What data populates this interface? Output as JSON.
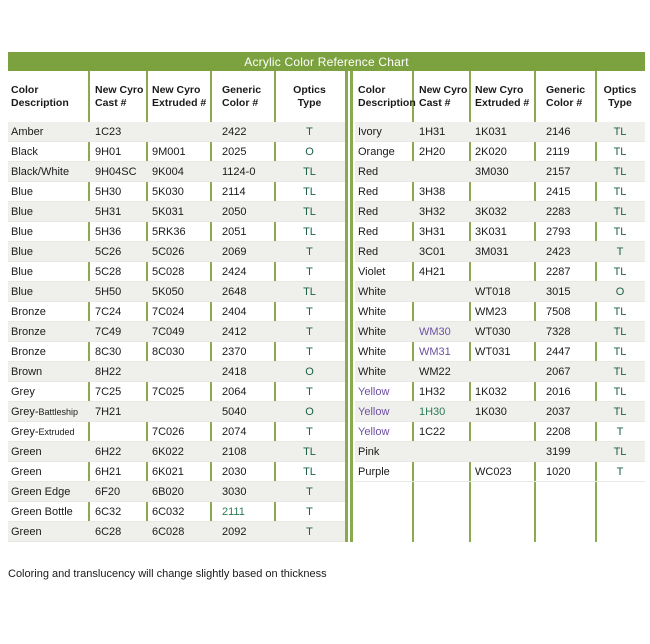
{
  "title": "Acrylic Color Reference Chart",
  "footnote": "Coloring and translucency will change slightly based on thickness",
  "colors": {
    "title_bar": "#7ca23f",
    "divider": "#88ab4e",
    "stripe": "#efefec",
    "accent_green": "#2b7a57",
    "accent_purple": "#6d51a1",
    "optics": "#1b6148"
  },
  "headers": [
    "Color\nDescription",
    "New Cyro\nCast #",
    "New Cyro\nExtruded #",
    "Generic\nColor #",
    "Optics\nType"
  ],
  "left_rows": [
    {
      "desc": "Amber",
      "cast": "1C23",
      "ext": "",
      "gen": "2422",
      "opt": "T"
    },
    {
      "desc": "Black",
      "cast": "9H01",
      "ext": "9M001",
      "gen": "2025",
      "opt": "O"
    },
    {
      "desc": "Black/White",
      "cast": "9H04SC",
      "ext": "9K004",
      "gen": "1124-0",
      "opt": "TL"
    },
    {
      "desc": "Blue",
      "cast": "5H30",
      "ext": "5K030",
      "gen": "2114",
      "opt": "TL"
    },
    {
      "desc": "Blue",
      "cast": "5H31",
      "ext": "5K031",
      "gen": "2050",
      "opt": "TL"
    },
    {
      "desc": "Blue",
      "cast": "5H36",
      "ext": "5RK36",
      "gen": "2051",
      "opt": "TL"
    },
    {
      "desc": "Blue",
      "cast": "5C26",
      "ext": "5C026",
      "gen": "2069",
      "opt": "T"
    },
    {
      "desc": "Blue",
      "cast": "5C28",
      "ext": "5C028",
      "gen": "2424",
      "opt": "T"
    },
    {
      "desc": "Blue",
      "cast": "5H50",
      "ext": "5K050",
      "gen": "2648",
      "opt": "TL"
    },
    {
      "desc": "Bronze",
      "cast": "7C24",
      "ext": "7C024",
      "gen": "2404",
      "opt": "T"
    },
    {
      "desc": "Bronze",
      "cast": "7C49",
      "ext": "7C049",
      "gen": "2412",
      "opt": "T"
    },
    {
      "desc": "Bronze",
      "cast": "8C30",
      "ext": "8C030",
      "gen": "2370",
      "opt": "T"
    },
    {
      "desc": "Brown",
      "cast": "8H22",
      "ext": "",
      "gen": "2418",
      "opt": "O"
    },
    {
      "desc": "Grey",
      "cast": "7C25",
      "ext": "7C025",
      "gen": "2064",
      "opt": "T"
    },
    {
      "desc": "Grey-Battleship",
      "cast": "7H21",
      "ext": "",
      "gen": "5040",
      "opt": "O",
      "suffix_small": true
    },
    {
      "desc": "Grey-Extruded",
      "cast": "",
      "ext": "7C026",
      "gen": "2074",
      "opt": "T",
      "suffix_small": true
    },
    {
      "desc": "Green",
      "cast": "6H22",
      "ext": "6K022",
      "gen": "2108",
      "opt": "TL"
    },
    {
      "desc": "Green",
      "cast": "6H21",
      "ext": "6K021",
      "gen": "2030",
      "opt": "TL"
    },
    {
      "desc": "Green Edge",
      "cast": "6F20",
      "ext": "6B020",
      "gen": "3030",
      "opt": "T"
    },
    {
      "desc": "Green Bottle",
      "cast": "6C32",
      "ext": "6C032",
      "gen": "2111",
      "opt": "T",
      "styles": {
        "gen": "green"
      }
    },
    {
      "desc": "Green",
      "cast": "6C28",
      "ext": "6C028",
      "gen": "2092",
      "opt": "T"
    }
  ],
  "right_rows": [
    {
      "desc": "Ivory",
      "cast": "1H31",
      "ext": "1K031",
      "gen": "2146",
      "opt": "TL"
    },
    {
      "desc": "Orange",
      "cast": "2H20",
      "ext": "2K020",
      "gen": "2119",
      "opt": "TL"
    },
    {
      "desc": "Red",
      "cast": "",
      "ext": "3M030",
      "gen": "2157",
      "opt": "TL"
    },
    {
      "desc": "Red",
      "cast": "3H38",
      "ext": "",
      "gen": "2415",
      "opt": "TL"
    },
    {
      "desc": "Red",
      "cast": "3H32",
      "ext": "3K032",
      "gen": "2283",
      "opt": "TL"
    },
    {
      "desc": "Red",
      "cast": "3H31",
      "ext": "3K031",
      "gen": "2793",
      "opt": "TL"
    },
    {
      "desc": "Red",
      "cast": "3C01",
      "ext": "3M031",
      "gen": "2423",
      "opt": "T"
    },
    {
      "desc": "Violet",
      "cast": "4H21",
      "ext": "",
      "gen": "2287",
      "opt": "TL"
    },
    {
      "desc": "White",
      "cast": "",
      "ext": "WT018",
      "gen": "3015",
      "opt": "O"
    },
    {
      "desc": "White",
      "cast": "",
      "ext": "WM23",
      "gen": "7508",
      "opt": "TL"
    },
    {
      "desc": "White",
      "cast": "WM30",
      "ext": "WT030",
      "gen": "7328",
      "opt": "TL",
      "styles": {
        "cast": "purple"
      }
    },
    {
      "desc": "White",
      "cast": "WM31",
      "ext": "WT031",
      "gen": "2447",
      "opt": "TL",
      "styles": {
        "cast": "purple"
      }
    },
    {
      "desc": "White",
      "cast": "WM22",
      "ext": "",
      "gen": "2067",
      "opt": "TL"
    },
    {
      "desc": "Yellow",
      "cast": "1H32",
      "ext": "1K032",
      "gen": "2016",
      "opt": "TL",
      "styles": {
        "desc": "purple"
      }
    },
    {
      "desc": "Yellow",
      "cast": "1H30",
      "ext": "1K030",
      "gen": "2037",
      "opt": "TL",
      "styles": {
        "desc": "purple",
        "cast": "green"
      }
    },
    {
      "desc": "Yellow",
      "cast": "1C22",
      "ext": "",
      "gen": "2208",
      "opt": "T",
      "styles": {
        "desc": "purple"
      }
    },
    {
      "desc": "Pink",
      "cast": "",
      "ext": "",
      "gen": "3199",
      "opt": "TL"
    },
    {
      "desc": "Purple",
      "cast": "",
      "ext": "WC023",
      "gen": "1020",
      "opt": "T"
    }
  ]
}
